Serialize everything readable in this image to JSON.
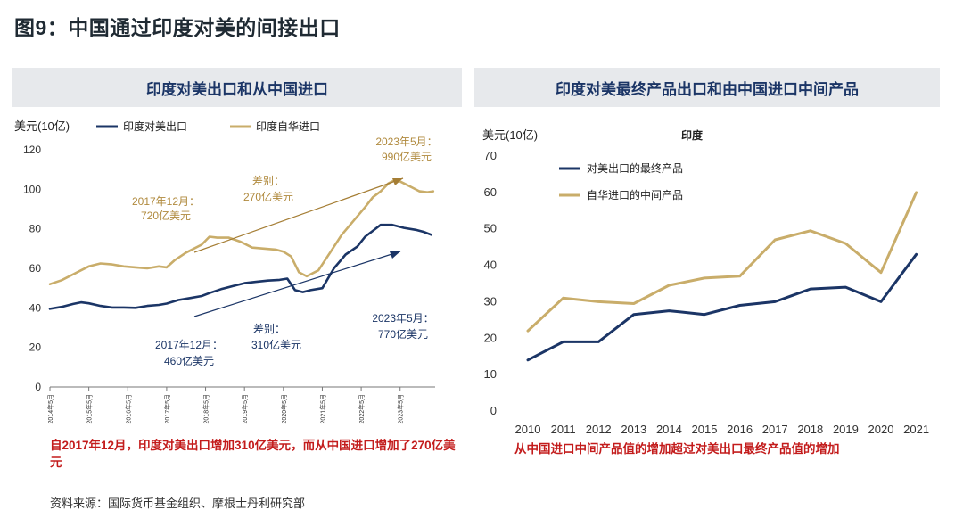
{
  "figure_title": "图9：中国通过印度对美的间接出口",
  "source": "资料来源：国际货币基金组织、摩根士丹利研究部",
  "colors": {
    "navy": "#1b3566",
    "gold": "#c9ad6a",
    "red": "#c31c1c",
    "annot_gold": "#b08a3e"
  },
  "chart_data": [
    {
      "type": "line",
      "panel_title": "印度对美出口和从中国进口",
      "ylabel": "美元(10亿)",
      "ylim": [
        0,
        120
      ],
      "yticks": [
        0,
        20,
        40,
        60,
        80,
        100,
        120
      ],
      "x_tick_labels": [
        "2014年5月",
        "2015年5月",
        "2016年5月",
        "2017年5月",
        "2018年5月",
        "2019年5月",
        "2020年5月",
        "2021年5月",
        "2022年5月",
        "2023年5月"
      ],
      "x_start": 2014.0,
      "x_end": 2023.9,
      "series": [
        {
          "name": "印度对美出口",
          "color": "#1b3566",
          "x": [
            2014.0,
            2014.3,
            2014.6,
            2014.8,
            2015.0,
            2015.3,
            2015.6,
            2015.9,
            2016.2,
            2016.5,
            2016.8,
            2017.0,
            2017.3,
            2017.6,
            2017.9,
            2018.1,
            2018.4,
            2018.7,
            2019.0,
            2019.3,
            2019.6,
            2019.9,
            2020.1,
            2020.3,
            2020.5,
            2020.7,
            2021.0,
            2021.3,
            2021.6,
            2021.9,
            2022.1,
            2022.3,
            2022.5,
            2022.8,
            2023.1,
            2023.4,
            2023.6,
            2023.8
          ],
          "values": [
            39.5,
            40.5,
            42.0,
            42.8,
            42.3,
            41.0,
            40.2,
            40.2,
            40.0,
            41.0,
            41.5,
            42.2,
            44.0,
            45.0,
            46.0,
            47.5,
            49.5,
            51.0,
            52.5,
            53.2,
            53.8,
            54.2,
            54.8,
            49.0,
            48.0,
            49.0,
            50.0,
            60.0,
            67.0,
            71.0,
            76.0,
            79.0,
            82.0,
            82.0,
            80.5,
            79.5,
            78.5,
            77.0
          ]
        },
        {
          "name": "印度自华进口",
          "color": "#c9ad6a",
          "x": [
            2014.0,
            2014.3,
            2014.6,
            2014.8,
            2015.0,
            2015.3,
            2015.6,
            2015.9,
            2016.2,
            2016.5,
            2016.8,
            2017.0,
            2017.2,
            2017.5,
            2017.9,
            2018.1,
            2018.3,
            2018.6,
            2018.9,
            2019.2,
            2019.5,
            2019.8,
            2020.0,
            2020.2,
            2020.4,
            2020.6,
            2020.9,
            2021.2,
            2021.5,
            2021.8,
            2022.1,
            2022.3,
            2022.5,
            2022.7,
            2022.9,
            2023.1,
            2023.3,
            2023.5,
            2023.7,
            2023.85
          ],
          "values": [
            52.0,
            54.0,
            57.0,
            59.0,
            61.0,
            62.5,
            62.0,
            61.0,
            60.5,
            60.0,
            61.0,
            60.5,
            64.0,
            68.0,
            72.0,
            76.0,
            75.5,
            75.5,
            73.5,
            70.5,
            70.0,
            69.5,
            68.5,
            66.0,
            58.0,
            56.0,
            59.0,
            68.0,
            77.0,
            84.0,
            91.0,
            96.0,
            99.0,
            103.0,
            105.0,
            103.0,
            101.0,
            99.0,
            98.5,
            99.0
          ]
        }
      ],
      "annotations": {
        "gold_start": [
          "2017年12月：",
          "720亿美元"
        ],
        "gold_diff": [
          "差别：",
          "270亿美元"
        ],
        "gold_end": [
          "2023年5月：",
          "990亿美元"
        ],
        "navy_start": [
          "2017年12月：",
          "460亿美元"
        ],
        "navy_diff": [
          "差别：",
          "310亿美元"
        ],
        "navy_end": [
          "2023年5月：",
          "770亿美元"
        ]
      },
      "note": "自2017年12月，印度对美出口增加310亿美元，而从中国进口增加了270亿美元"
    },
    {
      "type": "line",
      "panel_title": "印度对美最终产品出口和由中国进口中间产品",
      "subtitle": "印度",
      "ylabel": "美元(10亿)",
      "ylim": [
        0,
        70
      ],
      "yticks": [
        0,
        10,
        20,
        30,
        40,
        50,
        60,
        70
      ],
      "categories": [
        "2010",
        "2011",
        "2012",
        "2013",
        "2014",
        "2015",
        "2016",
        "2017",
        "2018",
        "2019",
        "2020",
        "2021"
      ],
      "series": [
        {
          "name": "对美出口的最终产品",
          "color": "#1b3566",
          "values": [
            14,
            19,
            19,
            26.5,
            27.5,
            26.5,
            29,
            30,
            33.5,
            34,
            30,
            43
          ]
        },
        {
          "name": "自华进口的中间产品",
          "color": "#c9ad6a",
          "values": [
            22,
            31,
            30,
            29.5,
            34.5,
            36.5,
            37,
            47,
            49.5,
            46,
            38,
            60
          ]
        }
      ],
      "note": "从中国进口中间产品值的增加超过对美出口最终产品值的增加"
    }
  ]
}
